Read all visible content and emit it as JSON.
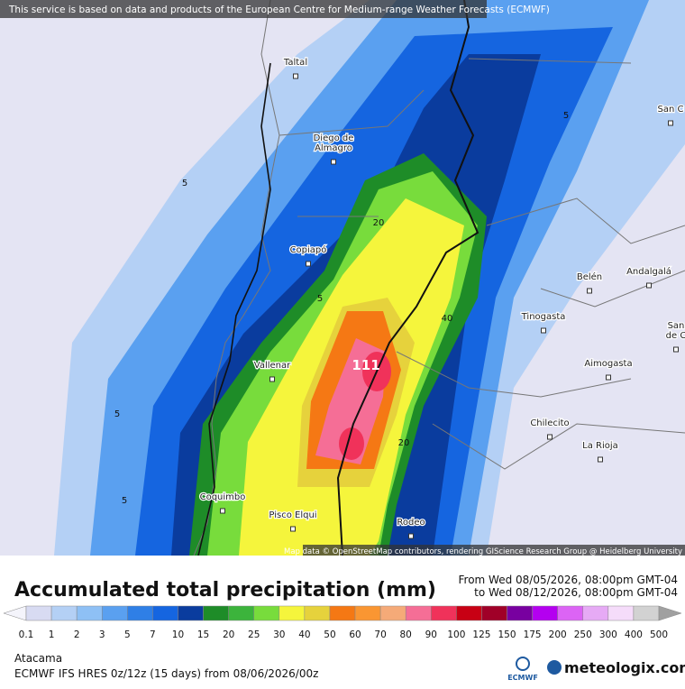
{
  "banner": "This service is based on data and products of the European Centre for Medium-range Weather Forecasts (ECMWF)",
  "map": {
    "cities": [
      [
        "Taltal"
      ],
      [
        "Diego de",
        "Almagro"
      ],
      [
        "Copiapó"
      ],
      [
        "Vallenar"
      ],
      [
        "Coquimbo"
      ],
      [
        "Pisco Elqui"
      ],
      [
        "Rodeo"
      ],
      [
        "Chilecito"
      ],
      [
        "La Rioja"
      ],
      [
        "Aimogasta"
      ],
      [
        "Tinogasta"
      ],
      [
        "Belén"
      ],
      [
        "Andalgalá"
      ],
      [
        "San C"
      ],
      [
        "San",
        "de C"
      ]
    ],
    "contour_labels": [
      "5",
      "5",
      "5",
      "5",
      "5",
      "20",
      "20",
      "40",
      "111"
    ],
    "attribution": "Map data © OpenStreetMap contributors, rendering GIScience Research Group @ Heidelberg University"
  },
  "header": {
    "title": "Accumulated total precipitation (mm)",
    "from": "From Wed 08/05/2026, 08:00pm GMT-04",
    "to": "to Wed 08/12/2026, 08:00pm GMT-04"
  },
  "legend": {
    "values": [
      "0.1",
      "1",
      "2",
      "3",
      "5",
      "7",
      "10",
      "15",
      "20",
      "25",
      "30",
      "40",
      "50",
      "60",
      "70",
      "80",
      "90",
      "100",
      "125",
      "150",
      "175",
      "200",
      "250",
      "300",
      "400",
      "500"
    ],
    "colors": [
      "#f4f4fb",
      "#d8dbf2",
      "#b4d0f5",
      "#8ec0f5",
      "#5aa0f0",
      "#2f7fe6",
      "#1565e0",
      "#0a3c9e",
      "#1e8c28",
      "#3cb43c",
      "#78dc3c",
      "#f5f53c",
      "#e6d23c",
      "#f57814",
      "#fa9632",
      "#f5aa78",
      "#f56e96",
      "#f0325a",
      "#c80014",
      "#a00028",
      "#7800a0",
      "#b400f0",
      "#dc64f5",
      "#e6aaf5",
      "#f5dcfa",
      "#d2d2d2",
      "#a0a0a0"
    ]
  },
  "footer": {
    "location": "Atacama",
    "model": "ECMWF IFS HRES 0z/12z (15 days) from 08/06/2026/00z",
    "logo_ecmwf": "ECMWF",
    "logo_meteologix": "meteologix.com"
  }
}
